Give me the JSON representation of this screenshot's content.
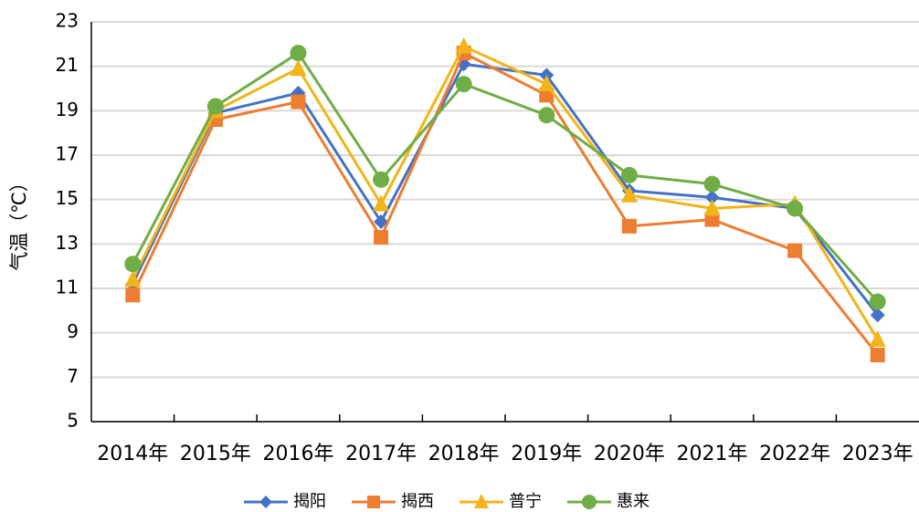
{
  "chart_data": {
    "type": "line",
    "y_label": "气温（℃）",
    "categories": [
      "2014年",
      "2015年",
      "2016年",
      "2017年",
      "2018年",
      "2019年",
      "2020年",
      "2021年",
      "2022年",
      "2023年"
    ],
    "series": [
      {
        "name": "揭阳",
        "color": "#4472c4",
        "marker": "diamond",
        "values": [
          11.2,
          18.9,
          19.8,
          14.0,
          21.1,
          20.6,
          15.4,
          15.1,
          14.6,
          9.8
        ]
      },
      {
        "name": "揭西",
        "color": "#ed7d31",
        "marker": "square",
        "values": [
          10.7,
          18.6,
          19.4,
          13.3,
          21.6,
          19.7,
          13.8,
          14.1,
          12.7,
          8.0
        ]
      },
      {
        "name": "普宁",
        "color": "#f2b418",
        "marker": "triangle",
        "values": [
          11.4,
          19.0,
          20.9,
          14.8,
          21.9,
          20.2,
          15.2,
          14.6,
          14.8,
          8.7
        ]
      },
      {
        "name": "惠来",
        "color": "#70ad47",
        "marker": "circle",
        "values": [
          12.1,
          19.2,
          21.6,
          15.9,
          20.2,
          18.8,
          16.1,
          15.7,
          14.6,
          10.4
        ]
      }
    ],
    "ylim": [
      5,
      23
    ],
    "yticks": [
      5,
      7,
      9,
      11,
      13,
      15,
      17,
      19,
      21,
      23
    ],
    "grid": true,
    "legend": "bottom"
  }
}
